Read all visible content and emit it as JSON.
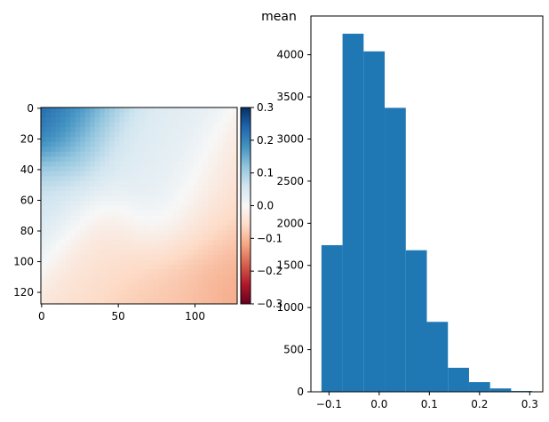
{
  "figure": {
    "suptitle": "mean"
  },
  "chart_data": [
    {
      "type": "heatmap",
      "title": "",
      "xlabel": "",
      "ylabel": "",
      "x_range": [
        0,
        127
      ],
      "y_range": [
        0,
        127
      ],
      "x_ticks": [
        0,
        50,
        100
      ],
      "y_ticks": [
        0,
        20,
        40,
        60,
        80,
        100,
        120
      ],
      "y_inverted": true,
      "colormap": "RdBu",
      "colorbar": {
        "range": [
          -0.3,
          0.3
        ],
        "ticks": [
          0.3,
          0.2,
          0.1,
          0.0,
          -0.1,
          -0.2,
          -0.3
        ],
        "tick_labels": [
          "0.3",
          "0.2",
          "0.1",
          "0.0",
          "−0.1",
          "−0.2",
          "−0.3"
        ]
      },
      "field_description": "smooth field: positive (blue, up to ~0.3) near top-left corner and along top/left edges, near zero in centre, negative (red, ~ -0.1) in lower-middle and lower-right region",
      "features": [
        {
          "x": 0,
          "y": 0,
          "value": 0.3
        },
        {
          "x": 20,
          "y": 10,
          "value": 0.12
        },
        {
          "x": 5,
          "y": 60,
          "value": 0.06
        },
        {
          "x": 60,
          "y": 30,
          "value": 0.03
        },
        {
          "x": 85,
          "y": 65,
          "value": 0.05
        },
        {
          "x": 40,
          "y": 90,
          "value": -0.05
        },
        {
          "x": 80,
          "y": 117,
          "value": -0.08
        },
        {
          "x": 115,
          "y": 100,
          "value": -0.12
        },
        {
          "x": 110,
          "y": 70,
          "value": -0.06
        }
      ]
    },
    {
      "type": "bar",
      "subtype": "histogram",
      "title": "",
      "xlabel": "",
      "ylabel": "",
      "bin_edges": [
        -0.115,
        -0.073,
        -0.031,
        0.011,
        0.053,
        0.095,
        0.137,
        0.179,
        0.221,
        0.263,
        0.305
      ],
      "counts": [
        1740,
        4250,
        4040,
        3370,
        1680,
        830,
        285,
        115,
        40,
        10
      ],
      "color": "#1f77b4",
      "xlim": [
        -0.136,
        0.326
      ],
      "ylim": [
        0,
        4460
      ],
      "x_ticks": [
        -0.1,
        0.0,
        0.1,
        0.2,
        0.3
      ],
      "x_tick_labels": [
        "−0.1",
        "0.0",
        "0.1",
        "0.2",
        "0.3"
      ],
      "y_ticks": [
        0,
        500,
        1000,
        1500,
        2000,
        2500,
        3000,
        3500,
        4000
      ],
      "y_tick_labels": [
        "0",
        "500",
        "1000",
        "1500",
        "2000",
        "2500",
        "3000",
        "3500",
        "4000"
      ]
    }
  ]
}
